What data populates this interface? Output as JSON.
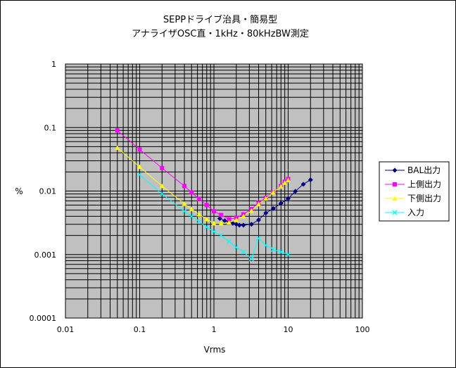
{
  "chart_data": {
    "type": "line",
    "title": "SEPPドライブ治具・簡易型",
    "subtitle": "アナライザOSC直・1kHz・80kHzBW測定",
    "xlabel": "Vrms",
    "ylabel": "%",
    "xscale": "log",
    "yscale": "log",
    "xlim": [
      0.01,
      100
    ],
    "ylim": [
      0.0001,
      1
    ],
    "x_tick_labels": [
      "0.01",
      "0.1",
      "1",
      "10",
      "100"
    ],
    "y_tick_labels": [
      "1",
      "0.1",
      "0.01",
      "0.001",
      "0.0001"
    ],
    "grid": true,
    "legend_position": "right",
    "plot_background": "#c0c0c0",
    "series": [
      {
        "name": "BAL出力",
        "color": "#000080",
        "marker": "diamond",
        "x": [
          1.2,
          1.4,
          1.6,
          1.8,
          2.0,
          2.2,
          2.5,
          3.2,
          4.0,
          5.0,
          6.3,
          8.0,
          10.0,
          12.5,
          16.0,
          20.0
        ],
        "y": [
          0.0037,
          0.0034,
          0.0032,
          0.0031,
          0.003,
          0.0029,
          0.0029,
          0.003,
          0.0035,
          0.0045,
          0.0053,
          0.0064,
          0.0076,
          0.0099,
          0.0128,
          0.015
        ]
      },
      {
        "name": "上側出力",
        "color": "#ff00ff",
        "marker": "square",
        "x": [
          0.05,
          0.1,
          0.2,
          0.4,
          0.5,
          0.63,
          0.8,
          1.0,
          1.25,
          1.6,
          2.0,
          2.5,
          3.2,
          4.0,
          5.0,
          6.3,
          8.0,
          9.0,
          10.0
        ],
        "y": [
          0.09,
          0.045,
          0.023,
          0.012,
          0.0095,
          0.0075,
          0.006,
          0.0048,
          0.0042,
          0.0036,
          0.0038,
          0.0043,
          0.0052,
          0.0065,
          0.0078,
          0.0095,
          0.012,
          0.014,
          0.0155
        ]
      },
      {
        "name": "下側出力",
        "color": "#ffff00",
        "marker": "triangle",
        "x": [
          0.05,
          0.1,
          0.2,
          0.4,
          0.5,
          0.63,
          0.8,
          1.0,
          1.25,
          1.6,
          2.0,
          2.5,
          3.2,
          4.0,
          5.0,
          6.3,
          8.0,
          9.0,
          10.0
        ],
        "y": [
          0.048,
          0.024,
          0.012,
          0.0063,
          0.0052,
          0.0043,
          0.0036,
          0.0031,
          0.0031,
          0.0032,
          0.0035,
          0.004,
          0.0049,
          0.0062,
          0.0076,
          0.0095,
          0.0118,
          0.0135,
          0.0148
        ]
      },
      {
        "name": "入力",
        "color": "#00ffff",
        "marker": "x",
        "x": [
          0.1,
          0.2,
          0.4,
          0.5,
          0.63,
          0.8,
          1.0,
          1.25,
          1.6,
          2.0,
          2.5,
          3.2,
          4.0,
          5.0,
          6.3,
          8.0,
          10.0
        ],
        "y": [
          0.018,
          0.009,
          0.0048,
          0.004,
          0.0033,
          0.0027,
          0.0023,
          0.002,
          0.0016,
          0.0013,
          0.0011,
          0.00085,
          0.0018,
          0.0014,
          0.0012,
          0.0011,
          0.001
        ]
      }
    ]
  }
}
